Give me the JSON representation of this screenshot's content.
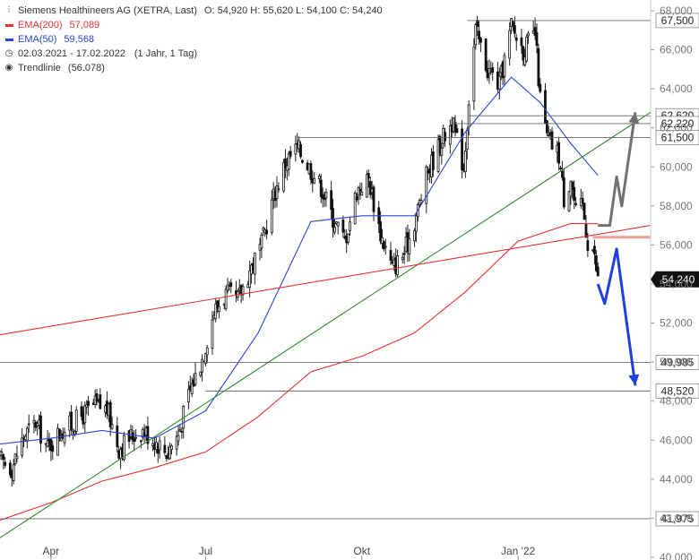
{
  "legend": {
    "title": "Siemens Healthineers AG (XETRA, Last)",
    "ohlc": "O: 54,920  H: 55,620  L: 54,100  C: 54,240",
    "ema200_label": "EMA(200)",
    "ema200_value": "57,089",
    "ema50_label": "EMA(50)",
    "ema50_value": "59,568",
    "range": "02.03.2021 - 17.02.2022",
    "period": "(1 Jahr, 1 Tag)",
    "trend_label": "Trendlinie",
    "trend_value": "(56.078)"
  },
  "chart_data": {
    "type": "candlestick",
    "ylim": [
      40,
      68
    ],
    "y_ticks": [
      40,
      42,
      44,
      46,
      48,
      50,
      52,
      54,
      56,
      58,
      60,
      62,
      64,
      66,
      68
    ],
    "y_tick_labels": [
      "40,000",
      "42,000",
      "44,000",
      "46,000",
      "48,000",
      "50,000",
      "52,000",
      "54,000",
      "56,000",
      "58,000",
      "60,000",
      "62,000",
      "64,000",
      "66,000",
      "68,000"
    ],
    "x_tick_labels": [
      {
        "label": "Apr",
        "date": "2021-04-01"
      },
      {
        "label": "Jul",
        "date": "2021-07-01"
      },
      {
        "label": "Okt",
        "date": "2021-10-01"
      },
      {
        "label": "Jan '22",
        "date": "2022-01-01"
      }
    ],
    "x_range": [
      "2021-03-02",
      "2022-03-20"
    ],
    "close_path": [
      [
        "2021-03-02",
        45.0
      ],
      [
        "2021-03-09",
        44.6
      ],
      [
        "2021-03-16",
        46.2
      ],
      [
        "2021-03-23",
        46.9
      ],
      [
        "2021-03-30",
        45.6
      ],
      [
        "2021-04-06",
        46.4
      ],
      [
        "2021-04-13",
        46.8
      ],
      [
        "2021-04-20",
        47.3
      ],
      [
        "2021-04-27",
        47.8
      ],
      [
        "2021-05-04",
        47.6
      ],
      [
        "2021-05-11",
        45.6
      ],
      [
        "2021-05-18",
        46.2
      ],
      [
        "2021-05-25",
        46.5
      ],
      [
        "2021-06-01",
        46.0
      ],
      [
        "2021-06-08",
        45.4
      ],
      [
        "2021-06-15",
        46.3
      ],
      [
        "2021-06-22",
        48.6
      ],
      [
        "2021-06-29",
        50.2
      ],
      [
        "2021-07-06",
        52.6
      ],
      [
        "2021-07-13",
        53.5
      ],
      [
        "2021-07-20",
        53.2
      ],
      [
        "2021-07-27",
        54.7
      ],
      [
        "2021-08-03",
        56.0
      ],
      [
        "2021-08-10",
        58.5
      ],
      [
        "2021-08-17",
        60.2
      ],
      [
        "2021-08-24",
        61.0
      ],
      [
        "2021-08-31",
        60.0
      ],
      [
        "2021-09-07",
        59.0
      ],
      [
        "2021-09-14",
        57.4
      ],
      [
        "2021-09-21",
        56.2
      ],
      [
        "2021-09-28",
        58.8
      ],
      [
        "2021-10-05",
        59.4
      ],
      [
        "2021-10-12",
        56.6
      ],
      [
        "2021-10-19",
        54.8
      ],
      [
        "2021-10-26",
        55.6
      ],
      [
        "2021-11-02",
        57.5
      ],
      [
        "2021-11-09",
        59.8
      ],
      [
        "2021-11-16",
        61.2
      ],
      [
        "2021-11-23",
        62.3
      ],
      [
        "2021-11-30",
        60.0
      ],
      [
        "2021-12-03",
        63.5
      ],
      [
        "2021-12-07",
        67.0
      ],
      [
        "2021-12-14",
        65.0
      ],
      [
        "2021-12-21",
        64.2
      ],
      [
        "2021-12-28",
        67.2
      ],
      [
        "2022-01-04",
        66.0
      ],
      [
        "2022-01-11",
        66.8
      ],
      [
        "2022-01-14",
        63.5
      ],
      [
        "2022-01-18",
        61.5
      ],
      [
        "2022-01-25",
        60.6
      ],
      [
        "2022-01-28",
        58.4
      ],
      [
        "2022-02-01",
        59.5
      ],
      [
        "2022-02-04",
        57.6
      ],
      [
        "2022-02-08",
        58.0
      ],
      [
        "2022-02-11",
        56.2
      ],
      [
        "2022-02-14",
        55.8
      ],
      [
        "2022-02-17",
        54.24
      ]
    ],
    "series": [
      {
        "name": "EMA(200)",
        "color": "#e8312f",
        "path": [
          [
            "2021-03-02",
            41.9
          ],
          [
            "2021-04-01",
            42.8
          ],
          [
            "2021-05-01",
            43.9
          ],
          [
            "2021-06-01",
            44.6
          ],
          [
            "2021-07-01",
            45.4
          ],
          [
            "2021-08-01",
            47.2
          ],
          [
            "2021-09-01",
            49.5
          ],
          [
            "2021-10-01",
            50.3
          ],
          [
            "2021-11-01",
            51.5
          ],
          [
            "2021-12-01",
            53.6
          ],
          [
            "2022-01-01",
            56.2
          ],
          [
            "2022-02-01",
            57.1
          ],
          [
            "2022-02-17",
            57.089
          ]
        ]
      },
      {
        "name": "EMA(50)",
        "color": "#2846d8",
        "path": [
          [
            "2021-03-02",
            45.8
          ],
          [
            "2021-04-01",
            46.1
          ],
          [
            "2021-05-01",
            46.5
          ],
          [
            "2021-06-01",
            46.1
          ],
          [
            "2021-07-01",
            47.5
          ],
          [
            "2021-08-01",
            51.5
          ],
          [
            "2021-09-01",
            57.2
          ],
          [
            "2021-10-01",
            57.5
          ],
          [
            "2021-11-01",
            57.5
          ],
          [
            "2021-12-01",
            61.8
          ],
          [
            "2021-12-28",
            64.6
          ],
          [
            "2022-01-14",
            63.3
          ],
          [
            "2022-02-01",
            61.2
          ],
          [
            "2022-02-17",
            59.568
          ]
        ]
      },
      {
        "name": "Trendlinie",
        "color": "#2f8a2f",
        "path": [
          [
            "2021-03-02",
            41.0
          ],
          [
            "2022-03-20",
            62.8
          ]
        ]
      },
      {
        "name": "Trendlinie 2",
        "color": "#e8312f",
        "path": [
          [
            "2021-03-02",
            51.4
          ],
          [
            "2022-03-20",
            57.0
          ]
        ]
      }
    ],
    "horizontal_levels": [
      {
        "value": 67.5,
        "label": "67,500",
        "from": "2021-12-02",
        "color": "#666666"
      },
      {
        "value": 62.62,
        "label": "62,620",
        "from": "2021-12-03",
        "color": "#666666"
      },
      {
        "value": 62.22,
        "label": "62,220",
        "from": "2021-11-23",
        "color": "#666666"
      },
      {
        "value": 61.5,
        "label": "61,500",
        "from": "2021-08-24",
        "color": "#666666"
      },
      {
        "value": 56.4,
        "label": "",
        "from": "2022-02-14",
        "color": "#e8a09a"
      },
      {
        "value": 49.985,
        "label": "49,985",
        "from": "2021-03-02",
        "color": "#666666"
      },
      {
        "value": 48.52,
        "label": "48,520",
        "from": "2021-07-01",
        "color": "#666666"
      },
      {
        "value": 41.975,
        "label": "41,975",
        "from": "2021-03-02",
        "color": "#666666"
      }
    ],
    "last_price": {
      "value": 54.24,
      "label": "54,240"
    },
    "scenarios": [
      {
        "name": "bullish",
        "color": "#707070",
        "path": [
          [
            "2022-02-17",
            57.0
          ],
          [
            "2022-02-24",
            57.0
          ],
          [
            "2022-02-28",
            59.5
          ],
          [
            "2022-03-03",
            58.0
          ],
          [
            "2022-03-11",
            62.8
          ]
        ]
      },
      {
        "name": "bearish",
        "color": "#1f3fe0",
        "path": [
          [
            "2022-02-17",
            54.0
          ],
          [
            "2022-02-21",
            53.0
          ],
          [
            "2022-02-28",
            55.8
          ],
          [
            "2022-03-11",
            48.8
          ]
        ]
      }
    ]
  }
}
